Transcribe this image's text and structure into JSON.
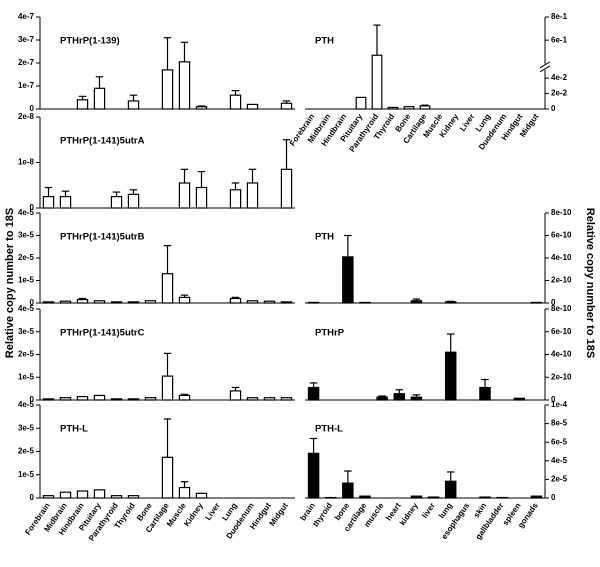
{
  "ylabel": "Relative copy number to 18S",
  "chart_data": [
    {
      "type": "bar",
      "title": "PTHrP(1-139)",
      "color": "#ffffff",
      "axis_side": "left",
      "values": [
        0,
        0,
        4e-08,
        9e-08,
        0,
        3.5e-08,
        0,
        1.7e-07,
        2.05e-07,
        1e-08,
        0,
        6e-08,
        2e-08,
        0,
        2.5e-08
      ],
      "errors": [
        null,
        null,
        1.5e-08,
        5e-08,
        null,
        2.5e-08,
        null,
        1.4e-07,
        8.5e-08,
        3e-09,
        null,
        2e-08,
        null,
        null,
        1e-08
      ],
      "ylim": [
        0,
        4e-07
      ],
      "yticks": [
        0,
        {
          "value": 1e-07,
          "label": "1e-7"
        },
        {
          "value": 2e-07,
          "label": "2e-7"
        },
        {
          "value": 3e-07,
          "label": "3e-7"
        },
        {
          "value": 4e-07,
          "label": "4e-7"
        }
      ]
    },
    {
      "type": "bar",
      "title": "PTH",
      "color": "#ffffff",
      "axis_side": "right",
      "categories": [
        "Forebrain",
        "Midbrain",
        "Hindbrain",
        "Pituitary",
        "Parathyroid",
        "Thyroid",
        "Bone",
        "Cartilage",
        "Muscle",
        "Kidney",
        "Liver",
        "Lung",
        "Duodenum",
        "Hindgut",
        "Midgut"
      ],
      "values": [
        0,
        0,
        0,
        0.015,
        0.47,
        0.002,
        0.003,
        0.004,
        0,
        0,
        0,
        0,
        0,
        0,
        0
      ],
      "errors": [
        null,
        null,
        null,
        null,
        0.26,
        null,
        null,
        0.001,
        null,
        null,
        null,
        null,
        null,
        null,
        null
      ],
      "ylim": [
        0,
        0.8
      ],
      "axis_break": [
        0.05,
        0.4
      ],
      "yticks": [
        0,
        {
          "value": 0.02,
          "label": "2e-2"
        },
        {
          "value": 0.04,
          "label": "4e-2"
        },
        {
          "value": 0.6,
          "label": "6e-1"
        },
        {
          "value": 0.8,
          "label": "8e-1"
        }
      ]
    },
    {
      "type": "bar",
      "title": "PTHrP(1-141)5utrA",
      "color": "#ffffff",
      "axis_side": "left",
      "values": [
        2.5e-09,
        2.5e-09,
        0,
        0,
        2.5e-09,
        3e-09,
        0,
        0,
        5.5e-09,
        4.5e-09,
        0,
        4e-09,
        5.5e-09,
        0,
        8.5e-09
      ],
      "errors": [
        2e-09,
        1.2e-09,
        null,
        null,
        1e-09,
        1e-09,
        null,
        null,
        3e-09,
        3.5e-09,
        null,
        1.5e-09,
        3e-09,
        null,
        6.5e-09
      ],
      "ylim": [
        0,
        2e-08
      ],
      "yticks": [
        0,
        {
          "value": 1e-08,
          "label": "1e-8"
        },
        {
          "value": 2e-08,
          "label": "2e-8"
        }
      ]
    },
    {
      "type": "bar",
      "title": "PTHrP(1-141)5utrB",
      "color": "#ffffff",
      "axis_side": "left",
      "values": [
        5e-07,
        8e-07,
        1.5e-06,
        1e-06,
        5e-07,
        5e-07,
        1e-06,
        1.3e-05,
        2.5e-06,
        0,
        0,
        2e-06,
        1e-06,
        8e-07,
        5e-07
      ],
      "errors": [
        null,
        null,
        5e-07,
        null,
        null,
        null,
        null,
        1.25e-05,
        1e-06,
        null,
        null,
        5e-07,
        null,
        null,
        null
      ],
      "ylim": [
        0,
        4e-05
      ],
      "yticks": [
        0,
        {
          "value": 1e-05,
          "label": "1e-5"
        },
        {
          "value": 2e-05,
          "label": "2e-5"
        },
        {
          "value": 3e-05,
          "label": "3e-5"
        },
        {
          "value": 4e-05,
          "label": "4e-5"
        }
      ]
    },
    {
      "type": "bar",
      "title": "PTH",
      "color": "#000000",
      "axis_side": "right",
      "values": [
        5e-12,
        0,
        4.1e-10,
        5e-12,
        0,
        0,
        2e-11,
        0,
        1e-11,
        0,
        0,
        0,
        0,
        5e-12
      ],
      "errors": [
        null,
        null,
        1.9e-10,
        null,
        null,
        null,
        1.5e-11,
        null,
        5e-12,
        null,
        null,
        null,
        null,
        null
      ],
      "ylim": [
        0,
        8e-10
      ],
      "yticks": [
        0,
        {
          "value": 2e-10,
          "label": "2e-10"
        },
        {
          "value": 4e-10,
          "label": "4e-10"
        },
        {
          "value": 6e-10,
          "label": "6e-10"
        },
        {
          "value": 8e-10,
          "label": "8e-10"
        }
      ]
    },
    {
      "type": "bar",
      "title": "PTHrP(1-141)5utrC",
      "color": "#ffffff",
      "axis_side": "left",
      "values": [
        5e-07,
        1e-06,
        1.5e-06,
        2e-06,
        5e-07,
        5e-07,
        1e-06,
        1.05e-05,
        2e-06,
        0,
        0,
        4e-06,
        1e-06,
        1e-06,
        1e-06
      ],
      "errors": [
        null,
        null,
        null,
        null,
        null,
        null,
        null,
        1e-05,
        5e-07,
        null,
        null,
        1.5e-06,
        null,
        null,
        null
      ],
      "ylim": [
        0,
        4e-05
      ],
      "yticks": [
        0,
        {
          "value": 1e-05,
          "label": "1e-5"
        },
        {
          "value": 2e-05,
          "label": "2e-5"
        },
        {
          "value": 3e-05,
          "label": "3e-5"
        },
        {
          "value": 4e-05,
          "label": "4e-5"
        }
      ]
    },
    {
      "type": "bar",
      "title": "PTHrP",
      "color": "#000000",
      "axis_side": "right",
      "values": [
        1.1e-10,
        0,
        0,
        0,
        2.5e-11,
        5.5e-11,
        2.5e-11,
        0,
        4.2e-10,
        0,
        1.1e-10,
        0,
        1.5e-11,
        0
      ],
      "errors": [
        4e-11,
        null,
        null,
        null,
        1e-11,
        3.5e-11,
        2e-11,
        null,
        1.6e-10,
        null,
        7e-11,
        null,
        null,
        null
      ],
      "ylim": [
        0,
        8e-10
      ],
      "yticks": [
        0,
        {
          "value": 2e-10,
          "label": "2e-10"
        },
        {
          "value": 4e-10,
          "label": "4e-10"
        },
        {
          "value": 6e-10,
          "label": "6e-10"
        },
        {
          "value": 8e-10,
          "label": "8e-10"
        }
      ]
    },
    {
      "type": "bar",
      "title": "PTH-L",
      "color": "#ffffff",
      "axis_side": "left",
      "categories": [
        "Forebrain",
        "Midbrain",
        "Hindbrain",
        "Pituitary",
        "Parathyroid",
        "Thyroid",
        "Bone",
        "Cartilage",
        "Muscle",
        "Kidney",
        "Liver",
        "Lung",
        "Duodenum",
        "Hindgut",
        "Midgut"
      ],
      "values": [
        1e-06,
        2.5e-06,
        3e-06,
        3.5e-06,
        1e-06,
        1e-06,
        0,
        1.75e-05,
        4.5e-06,
        2e-06,
        0,
        0,
        0,
        0,
        0
      ],
      "errors": [
        null,
        null,
        null,
        null,
        null,
        null,
        null,
        1.65e-05,
        2.5e-06,
        null,
        null,
        null,
        null,
        null,
        null
      ],
      "ylim": [
        0,
        4e-05
      ],
      "yticks": [
        0,
        {
          "value": 1e-05,
          "label": "1e-5"
        },
        {
          "value": 2e-05,
          "label": "2e-5"
        },
        {
          "value": 3e-05,
          "label": "3e-5"
        },
        {
          "value": 4e-05,
          "label": "4e-5"
        }
      ]
    },
    {
      "type": "bar",
      "title": "PTH-L",
      "color": "#000000",
      "axis_side": "right",
      "categories": [
        "brain",
        "thyroid",
        "bone",
        "cartilage",
        "muscle",
        "heart",
        "kidney",
        "liver",
        "lung",
        "esophagus",
        "skin",
        "gallbladder",
        "spleen",
        "gonads"
      ],
      "values": [
        4.8e-05,
        5e-07,
        1.6e-05,
        2e-06,
        0,
        0,
        2e-06,
        1e-06,
        1.8e-05,
        0,
        1e-06,
        5e-07,
        0,
        2e-06
      ],
      "errors": [
        1.6e-05,
        null,
        1.3e-05,
        null,
        null,
        null,
        null,
        null,
        1e-05,
        null,
        null,
        null,
        null,
        null
      ],
      "ylim": [
        0,
        0.0001
      ],
      "yticks": [
        0,
        {
          "value": 2e-05,
          "label": "2e-5"
        },
        {
          "value": 4e-05,
          "label": "4e-5"
        },
        {
          "value": 6e-05,
          "label": "6e-5"
        },
        {
          "value": 8e-05,
          "label": "8e-5"
        },
        {
          "value": 0.0001,
          "label": "1e-4"
        }
      ]
    }
  ]
}
